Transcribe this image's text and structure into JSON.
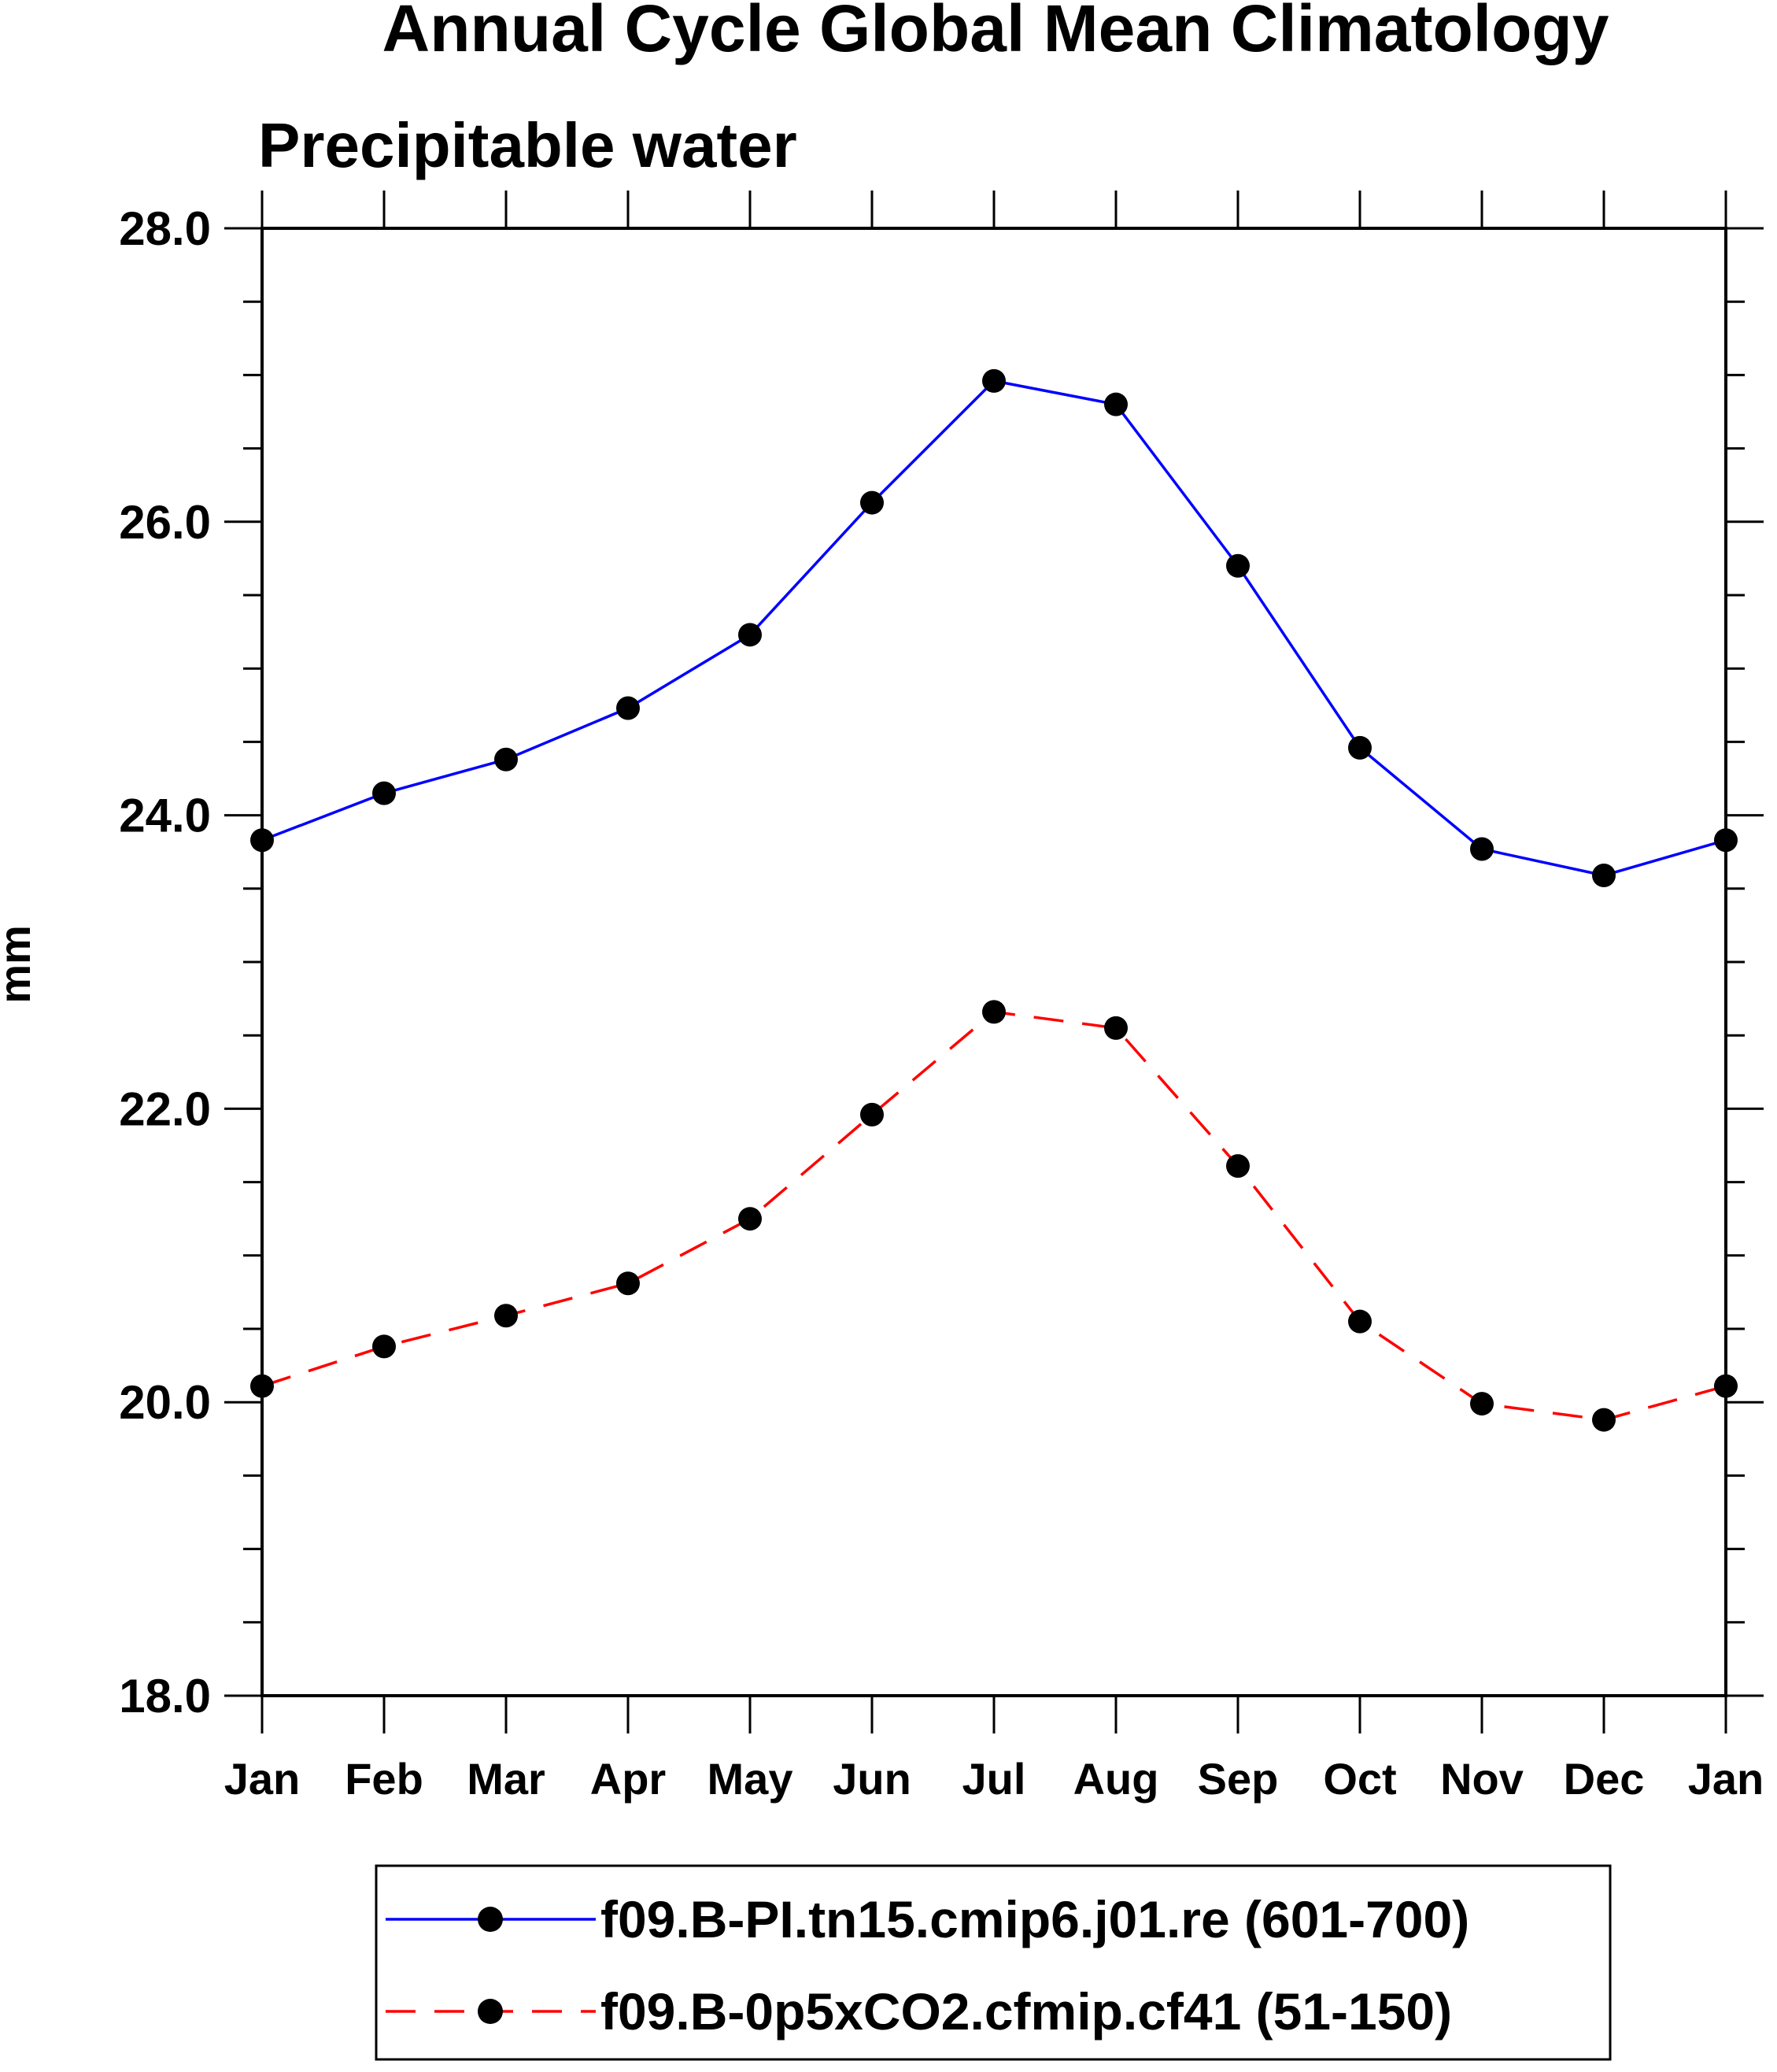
{
  "chart_data": {
    "type": "line",
    "title": "Annual Cycle Global Mean Climatology",
    "subtitle": "Precipitable water",
    "xlabel": "",
    "ylabel": "mm",
    "categories": [
      "Jan",
      "Feb",
      "Mar",
      "Apr",
      "May",
      "Jun",
      "Jul",
      "Aug",
      "Sep",
      "Oct",
      "Nov",
      "Dec",
      "Jan"
    ],
    "ylim": [
      18.0,
      28.0
    ],
    "y_ticks": [
      "18.0",
      "20.0",
      "22.0",
      "24.0",
      "26.0",
      "28.0"
    ],
    "grid": false,
    "legend_position": "bottom",
    "series": [
      {
        "name": "f09.B-PI.tn15.cmip6.j01.re (601-700)",
        "color": "#0000ff",
        "dash": "solid",
        "values": [
          23.83,
          24.15,
          24.38,
          24.73,
          25.23,
          26.13,
          26.96,
          26.8,
          25.7,
          24.46,
          23.77,
          23.59,
          23.83
        ]
      },
      {
        "name": "f09.B-0p5xCO2.cfmip.cf41 (51-150)",
        "color": "#ff0000",
        "dash": "dashed",
        "values": [
          20.11,
          20.38,
          20.59,
          20.81,
          21.25,
          21.96,
          22.66,
          22.55,
          21.61,
          20.55,
          19.99,
          19.88,
          20.11
        ]
      }
    ]
  }
}
